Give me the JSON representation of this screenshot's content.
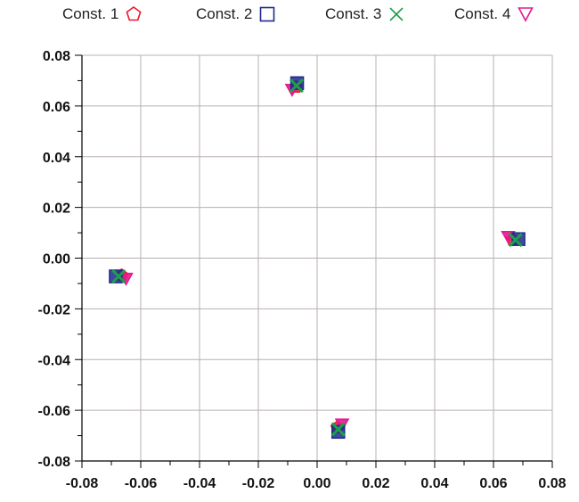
{
  "chart_data": {
    "type": "scatter",
    "title": "",
    "xlabel": "",
    "ylabel": "",
    "xlim": [
      -0.08,
      0.08
    ],
    "ylim": [
      -0.08,
      0.08
    ],
    "x_ticks": [
      "-0.08",
      "-0.06",
      "-0.04",
      "-0.02",
      "0.00",
      "0.02",
      "0.04",
      "0.06",
      "0.08"
    ],
    "y_ticks": [
      "0.08",
      "0.06",
      "0.04",
      "0.02",
      "0.00",
      "-0.02",
      "-0.04",
      "-0.06",
      "-0.08"
    ],
    "grid": true,
    "legend_position": "top",
    "series": [
      {
        "name": "Const. 1",
        "marker": "pentagon-icon",
        "color": "#e8192c",
        "points": [
          [
            -0.0665,
            -0.0068
          ],
          [
            -0.0072,
            0.0675
          ],
          [
            0.0068,
            -0.0668
          ],
          [
            0.0665,
            0.0072
          ]
        ]
      },
      {
        "name": "Const. 2",
        "marker": "square-icon",
        "color": "#1f2a8c",
        "points": [
          [
            -0.0685,
            -0.0072
          ],
          [
            -0.0068,
            0.069
          ],
          [
            0.0072,
            -0.0685
          ],
          [
            0.0685,
            0.0075
          ]
        ]
      },
      {
        "name": "Const. 3",
        "marker": "x-cross-icon",
        "color": "#1aa14a",
        "points": [
          [
            -0.0675,
            -0.0072
          ],
          [
            -0.007,
            0.068
          ],
          [
            0.0072,
            -0.0675
          ],
          [
            0.0675,
            0.0072
          ]
        ]
      },
      {
        "name": "Const. 4",
        "marker": "triangle-down-icon",
        "color": "#e6188c",
        "points": [
          [
            -0.065,
            -0.008
          ],
          [
            -0.0085,
            0.0665
          ],
          [
            0.0085,
            -0.0655
          ],
          [
            0.065,
            0.0085
          ]
        ]
      }
    ]
  }
}
